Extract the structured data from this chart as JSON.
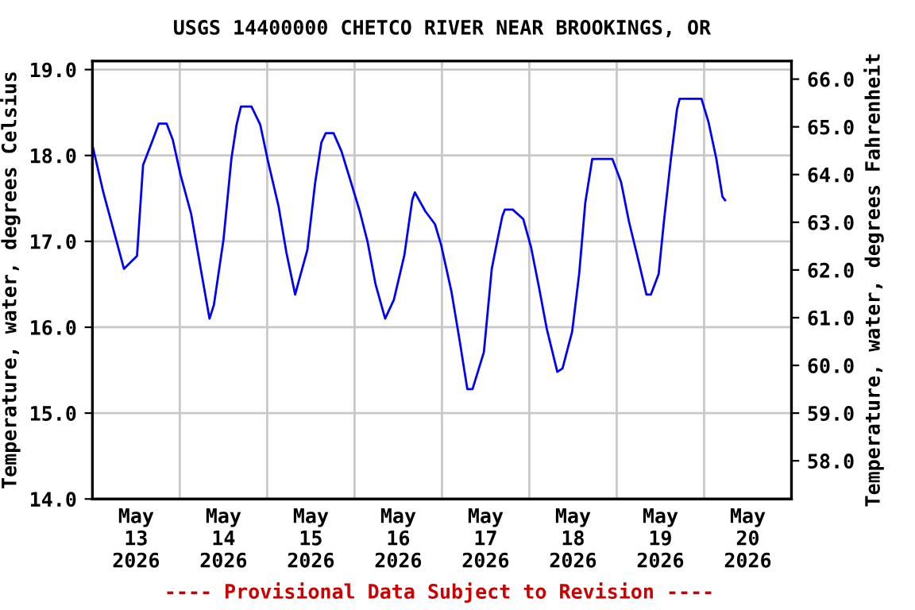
{
  "chart_data": {
    "type": "line",
    "title": "USGS 14400000 CHETCO RIVER NEAR BROOKINGS, OR",
    "ylabel": "Temperature, water, degrees Celsius",
    "y2label": "Temperature, water, degrees Fahrenheit",
    "annotations": [
      "---- Provisional Data Subject to Revision ----"
    ],
    "series": [
      {
        "color": "#0000ff",
        "x": [
          "2026-05-13T00:00",
          "2026-05-13T03:00",
          "2026-05-13T08:40",
          "2026-05-13T10:48",
          "2026-05-13T12:15",
          "2026-05-13T12:58",
          "2026-05-13T13:55",
          "2026-05-13T16:34",
          "2026-05-13T18:14",
          "2026-05-13T20:24",
          "2026-05-13T22:05",
          "2026-05-14T00:14",
          "2026-05-14T03:07",
          "2026-05-14T06:00",
          "2026-05-14T08:10",
          "2026-05-14T09:22",
          "2026-05-14T12:00",
          "2026-05-14T14:10",
          "2026-05-14T15:36",
          "2026-05-14T16:48",
          "2026-05-14T19:41",
          "2026-05-14T22:05",
          "2026-05-15T00:14",
          "2026-05-15T03:07",
          "2026-05-15T05:17",
          "2026-05-15T07:41",
          "2026-05-15T08:38",
          "2026-05-15T11:02",
          "2026-05-15T13:12",
          "2026-05-15T14:53",
          "2026-05-15T16:05",
          "2026-05-15T18:14",
          "2026-05-15T20:24",
          "2026-05-15T22:34",
          "2026-05-16T01:26",
          "2026-05-16T03:36",
          "2026-05-16T05:46",
          "2026-05-16T08:24",
          "2026-05-16T10:48",
          "2026-05-16T13:41",
          "2026-05-16T15:50",
          "2026-05-16T16:34",
          "2026-05-16T19:26",
          "2026-05-16T22:05",
          "2026-05-16T23:46",
          "2026-05-17T02:38",
          "2026-05-17T04:48",
          "2026-05-17T06:58",
          "2026-05-17T08:24",
          "2026-05-17T11:31",
          "2026-05-17T13:41",
          "2026-05-17T15:07",
          "2026-05-17T16:34",
          "2026-05-17T17:17",
          "2026-05-17T19:26",
          "2026-05-17T22:19",
          "2026-05-18T00:29",
          "2026-05-18T02:38",
          "2026-05-18T04:48",
          "2026-05-18T07:41",
          "2026-05-18T09:07",
          "2026-05-18T11:46",
          "2026-05-18T13:41",
          "2026-05-18T15:22",
          "2026-05-18T17:17",
          "2026-05-18T22:48",
          "2026-05-19T01:12",
          "2026-05-19T03:22",
          "2026-05-19T06:00",
          "2026-05-19T08:10",
          "2026-05-19T09:22",
          "2026-05-19T11:31",
          "2026-05-19T12:58",
          "2026-05-19T14:53",
          "2026-05-19T16:34",
          "2026-05-19T17:17",
          "2026-05-19T23:17",
          "2026-05-20T01:12",
          "2026-05-20T03:22",
          "2026-05-20T05:02",
          "2026-05-20T05:46"
        ],
        "values": [
          18.12,
          17.57,
          16.68,
          16.77,
          16.83,
          17.29,
          17.89,
          18.18,
          18.37,
          18.37,
          18.18,
          17.77,
          17.32,
          16.62,
          16.1,
          16.26,
          17.02,
          17.96,
          18.36,
          18.57,
          18.57,
          18.36,
          17.93,
          17.41,
          16.87,
          16.38,
          16.53,
          16.9,
          17.69,
          18.15,
          18.26,
          18.26,
          18.05,
          17.75,
          17.35,
          16.99,
          16.5,
          16.1,
          16.32,
          16.84,
          17.48,
          17.57,
          17.35,
          17.2,
          16.96,
          16.41,
          15.86,
          15.28,
          15.28,
          15.71,
          16.68,
          16.99,
          17.29,
          17.37,
          17.37,
          17.26,
          16.93,
          16.47,
          15.98,
          15.48,
          15.52,
          15.95,
          16.62,
          17.45,
          17.96,
          17.96,
          17.69,
          17.23,
          16.77,
          16.38,
          16.38,
          16.62,
          17.23,
          17.96,
          18.54,
          18.66,
          18.66,
          18.39,
          17.96,
          17.52,
          17.48
        ]
      }
    ],
    "xlim": [
      "2026-05-13T00:00",
      "2026-05-21T00:00"
    ],
    "xticks": [
      {
        "value": "2026-05-13T12:00",
        "label": "May\n13\n2026"
      },
      {
        "value": "2026-05-14T12:00",
        "label": "May\n14\n2026"
      },
      {
        "value": "2026-05-15T12:00",
        "label": "May\n15\n2026"
      },
      {
        "value": "2026-05-16T12:00",
        "label": "May\n16\n2026"
      },
      {
        "value": "2026-05-17T12:00",
        "label": "May\n17\n2026"
      },
      {
        "value": "2026-05-18T12:00",
        "label": "May\n18\n2026"
      },
      {
        "value": "2026-05-19T12:00",
        "label": "May\n19\n2026"
      },
      {
        "value": "2026-05-20T12:00",
        "label": "May\n20\n2026"
      },
      {
        "value": "2026-05-14T00:00",
        "label": null
      },
      {
        "value": "2026-05-15T00:00",
        "label": null
      },
      {
        "value": "2026-05-16T00:00",
        "label": null
      },
      {
        "value": "2026-05-17T00:00",
        "label": null
      },
      {
        "value": "2026-05-18T00:00",
        "label": null
      },
      {
        "value": "2026-05-19T00:00",
        "label": null
      },
      {
        "value": "2026-05-20T00:00",
        "label": null
      }
    ],
    "ylim": [
      14.0,
      19.1
    ],
    "yticks": [
      {
        "value": 14,
        "label": "14.0"
      },
      {
        "value": 15,
        "label": "15.0"
      },
      {
        "value": 16,
        "label": "16.0"
      },
      {
        "value": 17,
        "label": "17.0"
      },
      {
        "value": 18,
        "label": "18.0"
      },
      {
        "value": 19,
        "label": "19.0"
      }
    ],
    "y2lim": [
      57.2,
      66.38
    ],
    "y2ticks": [
      {
        "value": 58,
        "label": "58.0"
      },
      {
        "value": 59,
        "label": "59.0"
      },
      {
        "value": 60,
        "label": "60.0"
      },
      {
        "value": 61,
        "label": "61.0"
      },
      {
        "value": 62,
        "label": "62.0"
      },
      {
        "value": 63,
        "label": "63.0"
      },
      {
        "value": 64,
        "label": "64.0"
      },
      {
        "value": 65,
        "label": "65.0"
      },
      {
        "value": 66,
        "label": "66.0"
      }
    ],
    "grid": true,
    "line_style": "solid"
  }
}
